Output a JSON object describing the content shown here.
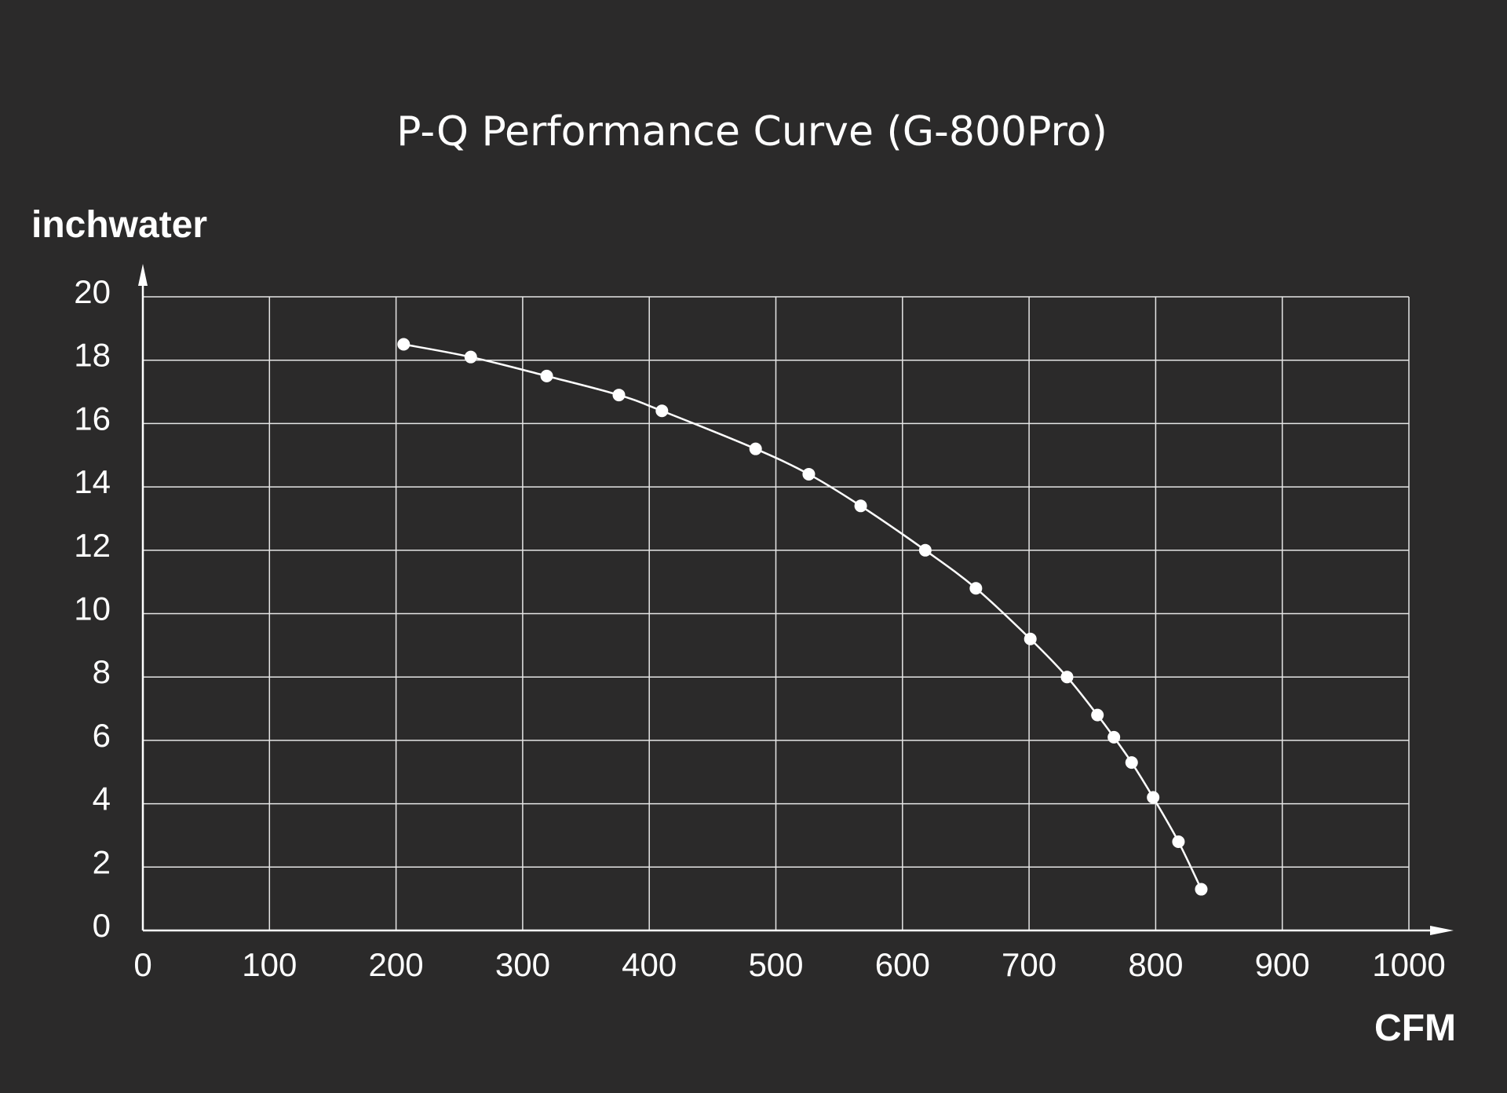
{
  "chart_data": {
    "type": "line",
    "title": "P-Q Performance Curve (G-800Pro)",
    "xlabel": "CFM",
    "ylabel": "inchwater",
    "xlim": [
      0,
      1000
    ],
    "ylim": [
      0,
      20
    ],
    "x_ticks": [
      "0",
      "100",
      "200",
      "300",
      "400",
      "500",
      "600",
      "700",
      "800",
      "900",
      "1000"
    ],
    "y_ticks": [
      "0",
      "2",
      "4",
      "6",
      "8",
      "10",
      "12",
      "14",
      "16",
      "18",
      "20"
    ],
    "grid": true,
    "colors": {
      "background": "#2b2a2a",
      "foreground": "#ffffff",
      "grid": "#e6e6e6"
    },
    "series": [
      {
        "x": [
          206,
          259,
          319,
          376,
          410,
          484,
          526,
          567,
          618,
          658,
          701,
          730,
          754,
          767,
          781,
          798,
          818,
          836
        ],
        "y": [
          18.5,
          18.1,
          17.5,
          16.9,
          16.4,
          15.2,
          14.4,
          13.4,
          12.0,
          10.8,
          9.2,
          8.0,
          6.8,
          6.1,
          5.3,
          4.2,
          2.8,
          1.3
        ]
      }
    ]
  }
}
